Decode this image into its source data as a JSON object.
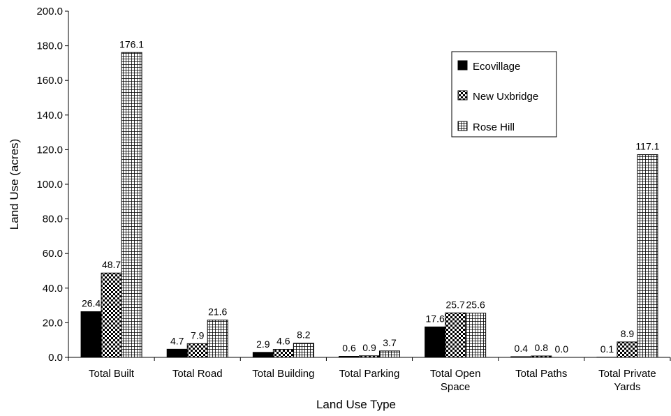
{
  "chart_data": {
    "type": "bar",
    "title": "",
    "xlabel": "Land Use Type",
    "ylabel": "Land Use (acres)",
    "ylim": [
      0,
      200
    ],
    "yticks": [
      "0.0",
      "20.0",
      "40.0",
      "60.0",
      "80.0",
      "100.0",
      "120.0",
      "140.0",
      "160.0",
      "180.0",
      "200.0"
    ],
    "grid": false,
    "legend_position": "top-right",
    "categories": [
      [
        "Total Built"
      ],
      [
        "Total Road"
      ],
      [
        "Total Building"
      ],
      [
        "Total Parking"
      ],
      [
        "Total Open",
        "Space"
      ],
      [
        "Total Paths"
      ],
      [
        "Total Private",
        "Yards"
      ]
    ],
    "series": [
      {
        "name": "Ecovillage",
        "pattern": "solid",
        "color": "#000000",
        "values": [
          26.4,
          4.7,
          2.9,
          0.6,
          17.6,
          0.4,
          0.1
        ],
        "labels": [
          "26.4",
          "4.7",
          "2.9",
          "0.6",
          "17.6",
          "0.4",
          "0.1"
        ]
      },
      {
        "name": "New Uxbridge",
        "pattern": "checker",
        "color": "#000000",
        "values": [
          48.7,
          7.9,
          4.6,
          0.9,
          25.7,
          0.8,
          8.9
        ],
        "labels": [
          "48.7",
          "7.9",
          "4.6",
          "0.9",
          "25.7",
          "0.8",
          "8.9"
        ]
      },
      {
        "name": "Rose Hill",
        "pattern": "grid",
        "color": "#000000",
        "values": [
          176.1,
          21.6,
          8.2,
          3.7,
          25.6,
          0.0,
          117.1
        ],
        "labels": [
          "176.1",
          "21.6",
          "8.2",
          "3.7",
          "25.6",
          "0.0",
          "117.1"
        ]
      }
    ]
  }
}
